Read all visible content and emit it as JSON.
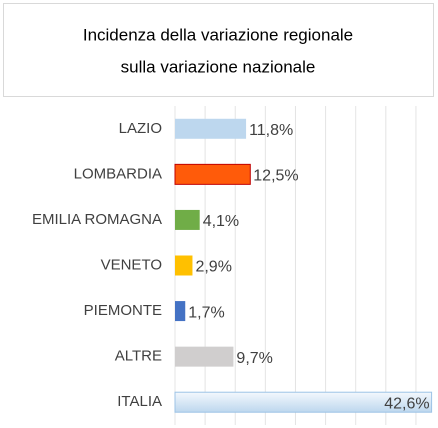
{
  "chart_data": {
    "type": "hbar",
    "title": [
      "Incidenza della variazione regionale",
      "sulla variazione nazionale"
    ],
    "categories": [
      "LAZIO",
      "LOMBARDIA",
      "EMILIA ROMAGNA",
      "VENETO",
      "PIEMONTE",
      "ALTRE",
      "ITALIA"
    ],
    "values": [
      11.8,
      12.5,
      4.1,
      2.9,
      1.7,
      9.7,
      42.6
    ],
    "value_labels": [
      "11,8%",
      "12,5%",
      "4,1%",
      "2,9%",
      "1,7%",
      "9,7%",
      "42,6%"
    ],
    "colors": [
      "#bdd7ee",
      "#ff5b0a",
      "#70ad47",
      "#ffc000",
      "#4472c4",
      "#d0cece",
      "#ddebf7"
    ],
    "xlim": [
      0,
      43
    ],
    "xticks": [
      0,
      5,
      10,
      15,
      20,
      25,
      30,
      35,
      40
    ],
    "grid": true
  }
}
